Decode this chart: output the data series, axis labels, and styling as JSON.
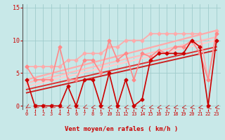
{
  "bg_color": "#c8e8e8",
  "grid_color": "#a0cccc",
  "xlabel": "Vent moyen/en rafales ( km/h )",
  "xlim": [
    -0.5,
    23.5
  ],
  "ylim": [
    -0.5,
    15.5
  ],
  "yticks": [
    0,
    5,
    10,
    15
  ],
  "xticks": [
    0,
    1,
    2,
    3,
    4,
    5,
    6,
    7,
    8,
    9,
    10,
    11,
    12,
    13,
    14,
    15,
    16,
    17,
    18,
    19,
    20,
    21,
    22,
    23
  ],
  "lines": [
    {
      "x": [
        0,
        1,
        2,
        3,
        4,
        5,
        6,
        7,
        8,
        9,
        10,
        11,
        12,
        13,
        14,
        15,
        16,
        17,
        18,
        19,
        20,
        21,
        22,
        23
      ],
      "y": [
        4,
        0,
        0,
        0,
        0,
        3,
        0,
        4,
        4,
        0,
        5,
        0,
        4,
        0,
        1,
        7,
        8,
        8,
        8,
        8,
        10,
        9,
        0,
        10
      ],
      "color": "#cc0000",
      "lw": 1.2,
      "marker": "D",
      "ms": 2.5,
      "alpha": 1.0,
      "zorder": 6
    },
    {
      "x": [
        0,
        1,
        2,
        3,
        4,
        5,
        6,
        7,
        8,
        9,
        10,
        11,
        12,
        13,
        14,
        15,
        16,
        17,
        18,
        19,
        20,
        21,
        22,
        23
      ],
      "y": [
        6,
        4,
        4,
        4,
        9,
        4,
        4,
        7,
        7,
        5,
        10,
        7,
        8,
        4,
        8,
        7.5,
        8.5,
        8,
        9,
        9,
        10,
        8,
        4,
        11
      ],
      "color": "#ff8888",
      "lw": 1.2,
      "marker": "D",
      "ms": 2.5,
      "alpha": 1.0,
      "zorder": 5
    },
    {
      "x": [
        0,
        23
      ],
      "y": [
        4.0,
        11.5
      ],
      "color": "#ffaaaa",
      "lw": 1.6,
      "marker": null,
      "ms": 0,
      "alpha": 1.0,
      "zorder": 2
    },
    {
      "x": [
        0,
        23
      ],
      "y": [
        3.5,
        10.5
      ],
      "color": "#ffbbbb",
      "lw": 1.6,
      "marker": null,
      "ms": 0,
      "alpha": 1.0,
      "zorder": 2
    },
    {
      "x": [
        0,
        23
      ],
      "y": [
        3.0,
        10.0
      ],
      "color": "#ffcccc",
      "lw": 1.6,
      "marker": null,
      "ms": 0,
      "alpha": 1.0,
      "zorder": 2
    },
    {
      "x": [
        0,
        23
      ],
      "y": [
        2.5,
        9.0
      ],
      "color": "#dd3333",
      "lw": 1.4,
      "marker": null,
      "ms": 0,
      "alpha": 1.0,
      "zorder": 3
    },
    {
      "x": [
        0,
        23
      ],
      "y": [
        2.0,
        8.5
      ],
      "color": "#cc2222",
      "lw": 1.4,
      "marker": null,
      "ms": 0,
      "alpha": 1.0,
      "zorder": 3
    },
    {
      "x": [
        0,
        1,
        2,
        3,
        4,
        5,
        6,
        7,
        8,
        9,
        10,
        11,
        12,
        13,
        14,
        15,
        16,
        17,
        18,
        19,
        20,
        21,
        22,
        23
      ],
      "y": [
        6,
        6,
        6,
        6,
        6,
        7,
        7,
        8,
        8,
        8,
        9,
        9,
        10,
        10,
        10,
        11,
        11,
        11,
        11,
        11,
        11,
        11,
        4,
        11.5
      ],
      "color": "#ffaaaa",
      "lw": 1.2,
      "marker": "D",
      "ms": 2.5,
      "alpha": 1.0,
      "zorder": 4
    }
  ],
  "wind_arrows": [
    [
      0,
      240
    ],
    [
      1,
      240
    ],
    [
      2,
      240
    ],
    [
      3,
      240
    ],
    [
      4,
      240
    ],
    [
      5,
      225
    ],
    [
      6,
      225
    ],
    [
      7,
      225
    ],
    [
      8,
      210
    ],
    [
      9,
      210
    ],
    [
      10,
      210
    ],
    [
      11,
      210
    ],
    [
      12,
      210
    ],
    [
      13,
      210
    ],
    [
      14,
      210
    ],
    [
      15,
      210
    ],
    [
      16,
      210
    ],
    [
      17,
      210
    ],
    [
      18,
      210
    ],
    [
      19,
      210
    ],
    [
      20,
      210
    ],
    [
      21,
      210
    ],
    [
      22,
      210
    ],
    [
      23,
      210
    ]
  ]
}
